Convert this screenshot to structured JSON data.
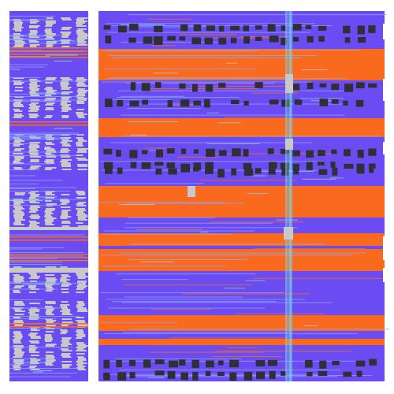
{
  "palette": {
    "background": "#ffffff",
    "blue": "#6a4cf2",
    "orange": "#fa6a1e",
    "gray": "#c8c8c8",
    "dark": "#2f2f38",
    "cyan": "#7ad6ea",
    "light_blue": "#8fa3ff"
  },
  "texture": {
    "kind": "glitch-stripes",
    "seed": 1337
  }
}
